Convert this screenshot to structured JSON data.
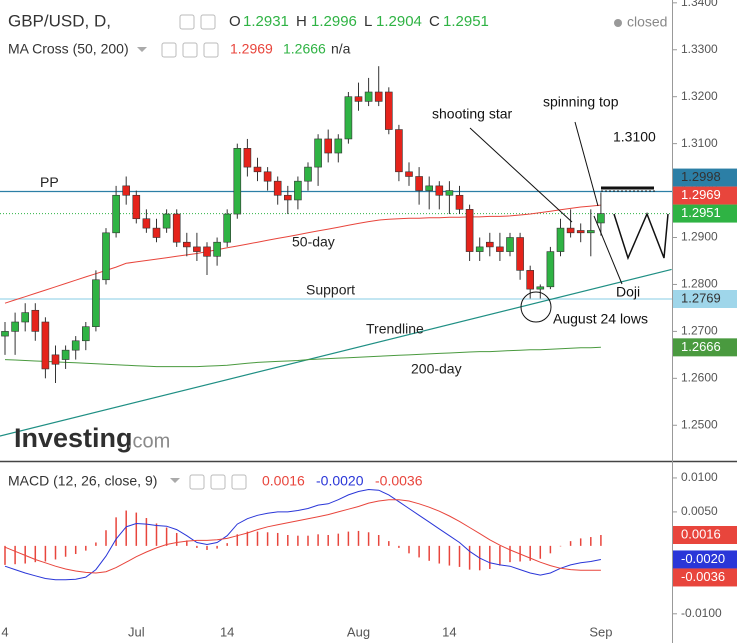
{
  "chart_data": [
    {
      "type": "candlestick",
      "title": "GBP/USD, D,",
      "status": "closed",
      "ohlc_labels": [
        "O",
        "H",
        "L",
        "C"
      ],
      "indicator": "MA Cross (50, 200)",
      "indicator_na": "n/a",
      "logo": "Investing",
      "logo_suffix": ".com",
      "up_color": "#2fb344",
      "down_color": "#e5231b",
      "categories": [
        "4",
        null,
        null,
        null,
        null,
        null,
        null,
        null,
        null,
        null,
        null,
        null,
        null,
        "Jul",
        null,
        null,
        null,
        null,
        null,
        null,
        null,
        null,
        "14",
        null,
        null,
        null,
        null,
        null,
        null,
        null,
        null,
        null,
        null,
        null,
        null,
        "Aug",
        null,
        null,
        null,
        null,
        null,
        null,
        null,
        null,
        "14",
        null,
        null,
        null,
        null,
        null,
        null,
        null,
        null,
        null,
        null,
        null,
        null,
        null,
        null,
        "Sep"
      ],
      "open": [
        1.269,
        1.27,
        1.272,
        1.2745,
        1.272,
        1.265,
        1.264,
        1.266,
        1.268,
        1.271,
        1.281,
        1.291,
        1.301,
        1.299,
        1.294,
        1.292,
        1.292,
        1.295,
        1.289,
        1.288,
        1.288,
        1.286,
        1.289,
        1.295,
        1.309,
        1.305,
        1.304,
        1.302,
        1.299,
        1.298,
        1.302,
        1.305,
        1.311,
        1.308,
        1.311,
        1.32,
        1.319,
        1.321,
        1.321,
        1.313,
        1.304,
        1.303,
        1.3,
        1.301,
        1.299,
        1.299,
        1.296,
        1.287,
        1.289,
        1.288,
        1.287,
        1.29,
        1.283,
        1.279,
        1.2795,
        1.287,
        1.292,
        1.2915,
        1.291,
        1.2931
      ],
      "high": [
        1.272,
        1.274,
        1.276,
        1.276,
        1.273,
        1.267,
        1.267,
        1.269,
        1.272,
        1.283,
        1.292,
        1.301,
        1.303,
        1.3,
        1.296,
        1.294,
        1.296,
        1.296,
        1.291,
        1.291,
        1.289,
        1.29,
        1.296,
        1.31,
        1.311,
        1.307,
        1.305,
        1.303,
        1.301,
        1.303,
        1.306,
        1.312,
        1.313,
        1.312,
        1.321,
        1.323,
        1.324,
        1.3265,
        1.322,
        1.314,
        1.306,
        1.305,
        1.303,
        1.302,
        1.302,
        1.301,
        1.297,
        1.29,
        1.291,
        1.291,
        1.291,
        1.291,
        1.284,
        1.28,
        1.288,
        1.294,
        1.296,
        1.293,
        1.296,
        1.2996
      ],
      "low": [
        1.265,
        1.265,
        1.27,
        1.268,
        1.26,
        1.259,
        1.262,
        1.264,
        1.266,
        1.27,
        1.28,
        1.29,
        1.297,
        1.293,
        1.291,
        1.289,
        1.291,
        1.288,
        1.286,
        1.285,
        1.282,
        1.284,
        1.288,
        1.294,
        1.303,
        1.302,
        1.3,
        1.297,
        1.295,
        1.296,
        1.3,
        1.301,
        1.306,
        1.306,
        1.31,
        1.317,
        1.318,
        1.318,
        1.312,
        1.302,
        1.301,
        1.297,
        1.296,
        1.296,
        1.295,
        1.295,
        1.285,
        1.285,
        1.286,
        1.285,
        1.286,
        1.281,
        1.277,
        1.277,
        1.279,
        1.286,
        1.29,
        1.289,
        1.286,
        1.2904
      ],
      "close": [
        1.27,
        1.272,
        1.274,
        1.27,
        1.262,
        1.263,
        1.266,
        1.268,
        1.271,
        1.281,
        1.291,
        1.299,
        1.299,
        1.294,
        1.292,
        1.29,
        1.295,
        1.289,
        1.288,
        1.287,
        1.286,
        1.289,
        1.295,
        1.309,
        1.305,
        1.304,
        1.302,
        1.299,
        1.298,
        1.302,
        1.305,
        1.311,
        1.308,
        1.311,
        1.32,
        1.319,
        1.321,
        1.319,
        1.313,
        1.304,
        1.303,
        1.3,
        1.301,
        1.299,
        1.3,
        1.296,
        1.287,
        1.288,
        1.288,
        1.287,
        1.29,
        1.283,
        1.279,
        1.2795,
        1.287,
        1.292,
        1.291,
        1.291,
        1.2915,
        1.2951
      ],
      "series": [
        {
          "name": "50-day",
          "color": "#e8453c",
          "values": [
            1.276,
            1.2767,
            1.2774,
            1.2781,
            1.2788,
            1.2795,
            1.2802,
            1.2809,
            1.2816,
            1.2823,
            1.283,
            1.2837,
            1.2845,
            1.2848,
            1.2851,
            1.2854,
            1.2857,
            1.286,
            1.2863,
            1.2866,
            1.287,
            1.2874,
            1.2878,
            1.2882,
            1.2886,
            1.289,
            1.2894,
            1.2898,
            1.2902,
            1.2906,
            1.291,
            1.2914,
            1.2918,
            1.2922,
            1.2926,
            1.293,
            1.2934,
            1.2937,
            1.2939,
            1.294,
            1.2941,
            1.2941,
            1.2942,
            1.2942,
            1.2943,
            1.2943,
            1.2944,
            1.2944,
            1.2945,
            1.2945,
            1.2946,
            1.2948,
            1.295,
            1.2953,
            1.2956,
            1.2959,
            1.2962,
            1.2965,
            1.2967,
            1.2969
          ]
        },
        {
          "name": "200-day",
          "color": "#4a9a3f",
          "values": [
            1.264,
            1.2639,
            1.2638,
            1.2637,
            1.2636,
            1.2635,
            1.2634,
            1.2633,
            1.2632,
            1.2631,
            1.263,
            1.2629,
            1.2628,
            1.2627,
            1.2626,
            1.2625,
            1.2625,
            1.2625,
            1.2625,
            1.2625,
            1.2626,
            1.2627,
            1.2628,
            1.263,
            1.2632,
            1.2634,
            1.2635,
            1.2636,
            1.2637,
            1.2638,
            1.264,
            1.2641,
            1.2642,
            1.2643,
            1.2644,
            1.2645,
            1.2646,
            1.2647,
            1.2648,
            1.2649,
            1.265,
            1.2651,
            1.2652,
            1.2653,
            1.2654,
            1.2655,
            1.2656,
            1.2657,
            1.2657,
            1.2658,
            1.2659,
            1.266,
            1.2661,
            1.2661,
            1.2662,
            1.2663,
            1.2664,
            1.2665,
            1.2665,
            1.2666
          ]
        }
      ],
      "levels": [
        {
          "label": "PP",
          "value": 1.2998,
          "color": "#2c7fa6"
        },
        {
          "label": "Support",
          "value": 1.2769,
          "color": "#9fd6ea"
        }
      ],
      "trendline": {
        "label": "Trendline",
        "x": [
          -0.5,
          66
        ],
        "values": [
          1.2477,
          1.2832
        ],
        "color": "#1f8f84"
      },
      "annotations": [
        "shooting star",
        "spinning top",
        "1.3100",
        "Doji",
        "August 24 lows"
      ],
      "ylim": [
        1.2426,
        1.3406
      ],
      "yticks": [
        {
          "value": 1.25,
          "label": "1.2500"
        },
        {
          "value": 1.26,
          "label": "1.2600"
        },
        {
          "value": 1.27,
          "label": "1.2700"
        },
        {
          "value": 1.28,
          "label": "1.2800"
        },
        {
          "value": 1.29,
          "label": "1.2900"
        },
        {
          "value": 1.3,
          "label": "1.3000"
        },
        {
          "value": 1.31,
          "label": "1.3100"
        },
        {
          "value": 1.32,
          "label": "1.3200"
        },
        {
          "value": 1.33,
          "label": "1.3300"
        },
        {
          "value": 1.34,
          "label": "1.3400"
        }
      ],
      "grid": false
    },
    {
      "type": "macd",
      "title": "MACD (12, 26, close, 9)",
      "series": [
        {
          "style": "histogram",
          "color": "#e8453c",
          "last_label": "0.0016",
          "values": [
            -0.0028,
            -0.0027,
            -0.0026,
            -0.0024,
            -0.0023,
            -0.002,
            -0.0016,
            -0.0012,
            -0.0007,
            0.0005,
            0.0023,
            0.0042,
            0.0052,
            0.0049,
            0.0041,
            0.0033,
            0.0027,
            0.0019,
            0.0008,
            -0.0003,
            -0.0006,
            -0.0004,
            0.0004,
            0.0017,
            0.0021,
            0.0021,
            0.002,
            0.0019,
            0.0016,
            0.0015,
            0.0015,
            0.0017,
            0.0016,
            0.0018,
            0.0021,
            0.0022,
            0.002,
            0.0016,
            0.0007,
            -0.0003,
            -0.0011,
            -0.0017,
            -0.0022,
            -0.0026,
            -0.0029,
            -0.0031,
            -0.0035,
            -0.0036,
            -0.0034,
            -0.0029,
            -0.0024,
            -0.0023,
            -0.0022,
            -0.0019,
            -0.0011,
            0.0,
            0.0007,
            0.0011,
            0.0013,
            0.0016
          ]
        },
        {
          "style": "line",
          "color": "#2a36d8",
          "last_label": "-0.0020",
          "values": [
            -0.003,
            -0.0035,
            -0.004,
            -0.0044,
            -0.0048,
            -0.005,
            -0.005,
            -0.0049,
            -0.0046,
            -0.0035,
            -0.0015,
            0.001,
            0.0028,
            0.0033,
            0.0032,
            0.003,
            0.0029,
            0.0024,
            0.0015,
            0.0005,
            0.0002,
            0.0005,
            0.0015,
            0.0032,
            0.004,
            0.0045,
            0.0048,
            0.005,
            0.005,
            0.0052,
            0.0055,
            0.006,
            0.0062,
            0.0068,
            0.0075,
            0.008,
            0.0083,
            0.0082,
            0.0075,
            0.0065,
            0.0055,
            0.0045,
            0.0035,
            0.0025,
            0.0015,
            0.0005,
            -0.0008,
            -0.0018,
            -0.0025,
            -0.0028,
            -0.003,
            -0.0035,
            -0.004,
            -0.0043,
            -0.004,
            -0.0033,
            -0.0028,
            -0.0025,
            -0.0023,
            -0.002
          ]
        },
        {
          "style": "line",
          "color": "#e8453c",
          "last_label": "-0.0036",
          "values": [
            -0.0002,
            -0.0008,
            -0.0014,
            -0.002,
            -0.0025,
            -0.003,
            -0.0034,
            -0.0037,
            -0.0039,
            -0.004,
            -0.0038,
            -0.0032,
            -0.0024,
            -0.0016,
            -0.0009,
            -0.0003,
            0.0002,
            0.0005,
            0.0007,
            0.0008,
            0.0008,
            0.0009,
            0.0011,
            0.0015,
            0.0019,
            0.0024,
            0.0028,
            0.0031,
            0.0034,
            0.0037,
            0.004,
            0.0043,
            0.0046,
            0.005,
            0.0054,
            0.0058,
            0.0063,
            0.0066,
            0.0068,
            0.0068,
            0.0066,
            0.0062,
            0.0057,
            0.0051,
            0.0044,
            0.0036,
            0.0027,
            0.0018,
            0.0009,
            0.0001,
            -0.0006,
            -0.0012,
            -0.0018,
            -0.0024,
            -0.0029,
            -0.0033,
            -0.0035,
            -0.0036,
            -0.0036,
            -0.0036
          ]
        }
      ],
      "ylim": [
        -0.0143,
        0.0122
      ],
      "yticks": [
        {
          "value": -0.01,
          "label": "-0.0100"
        },
        {
          "value": 0.005,
          "label": "0.0050"
        },
        {
          "value": 0.01,
          "label": "0.0100"
        }
      ]
    }
  ]
}
